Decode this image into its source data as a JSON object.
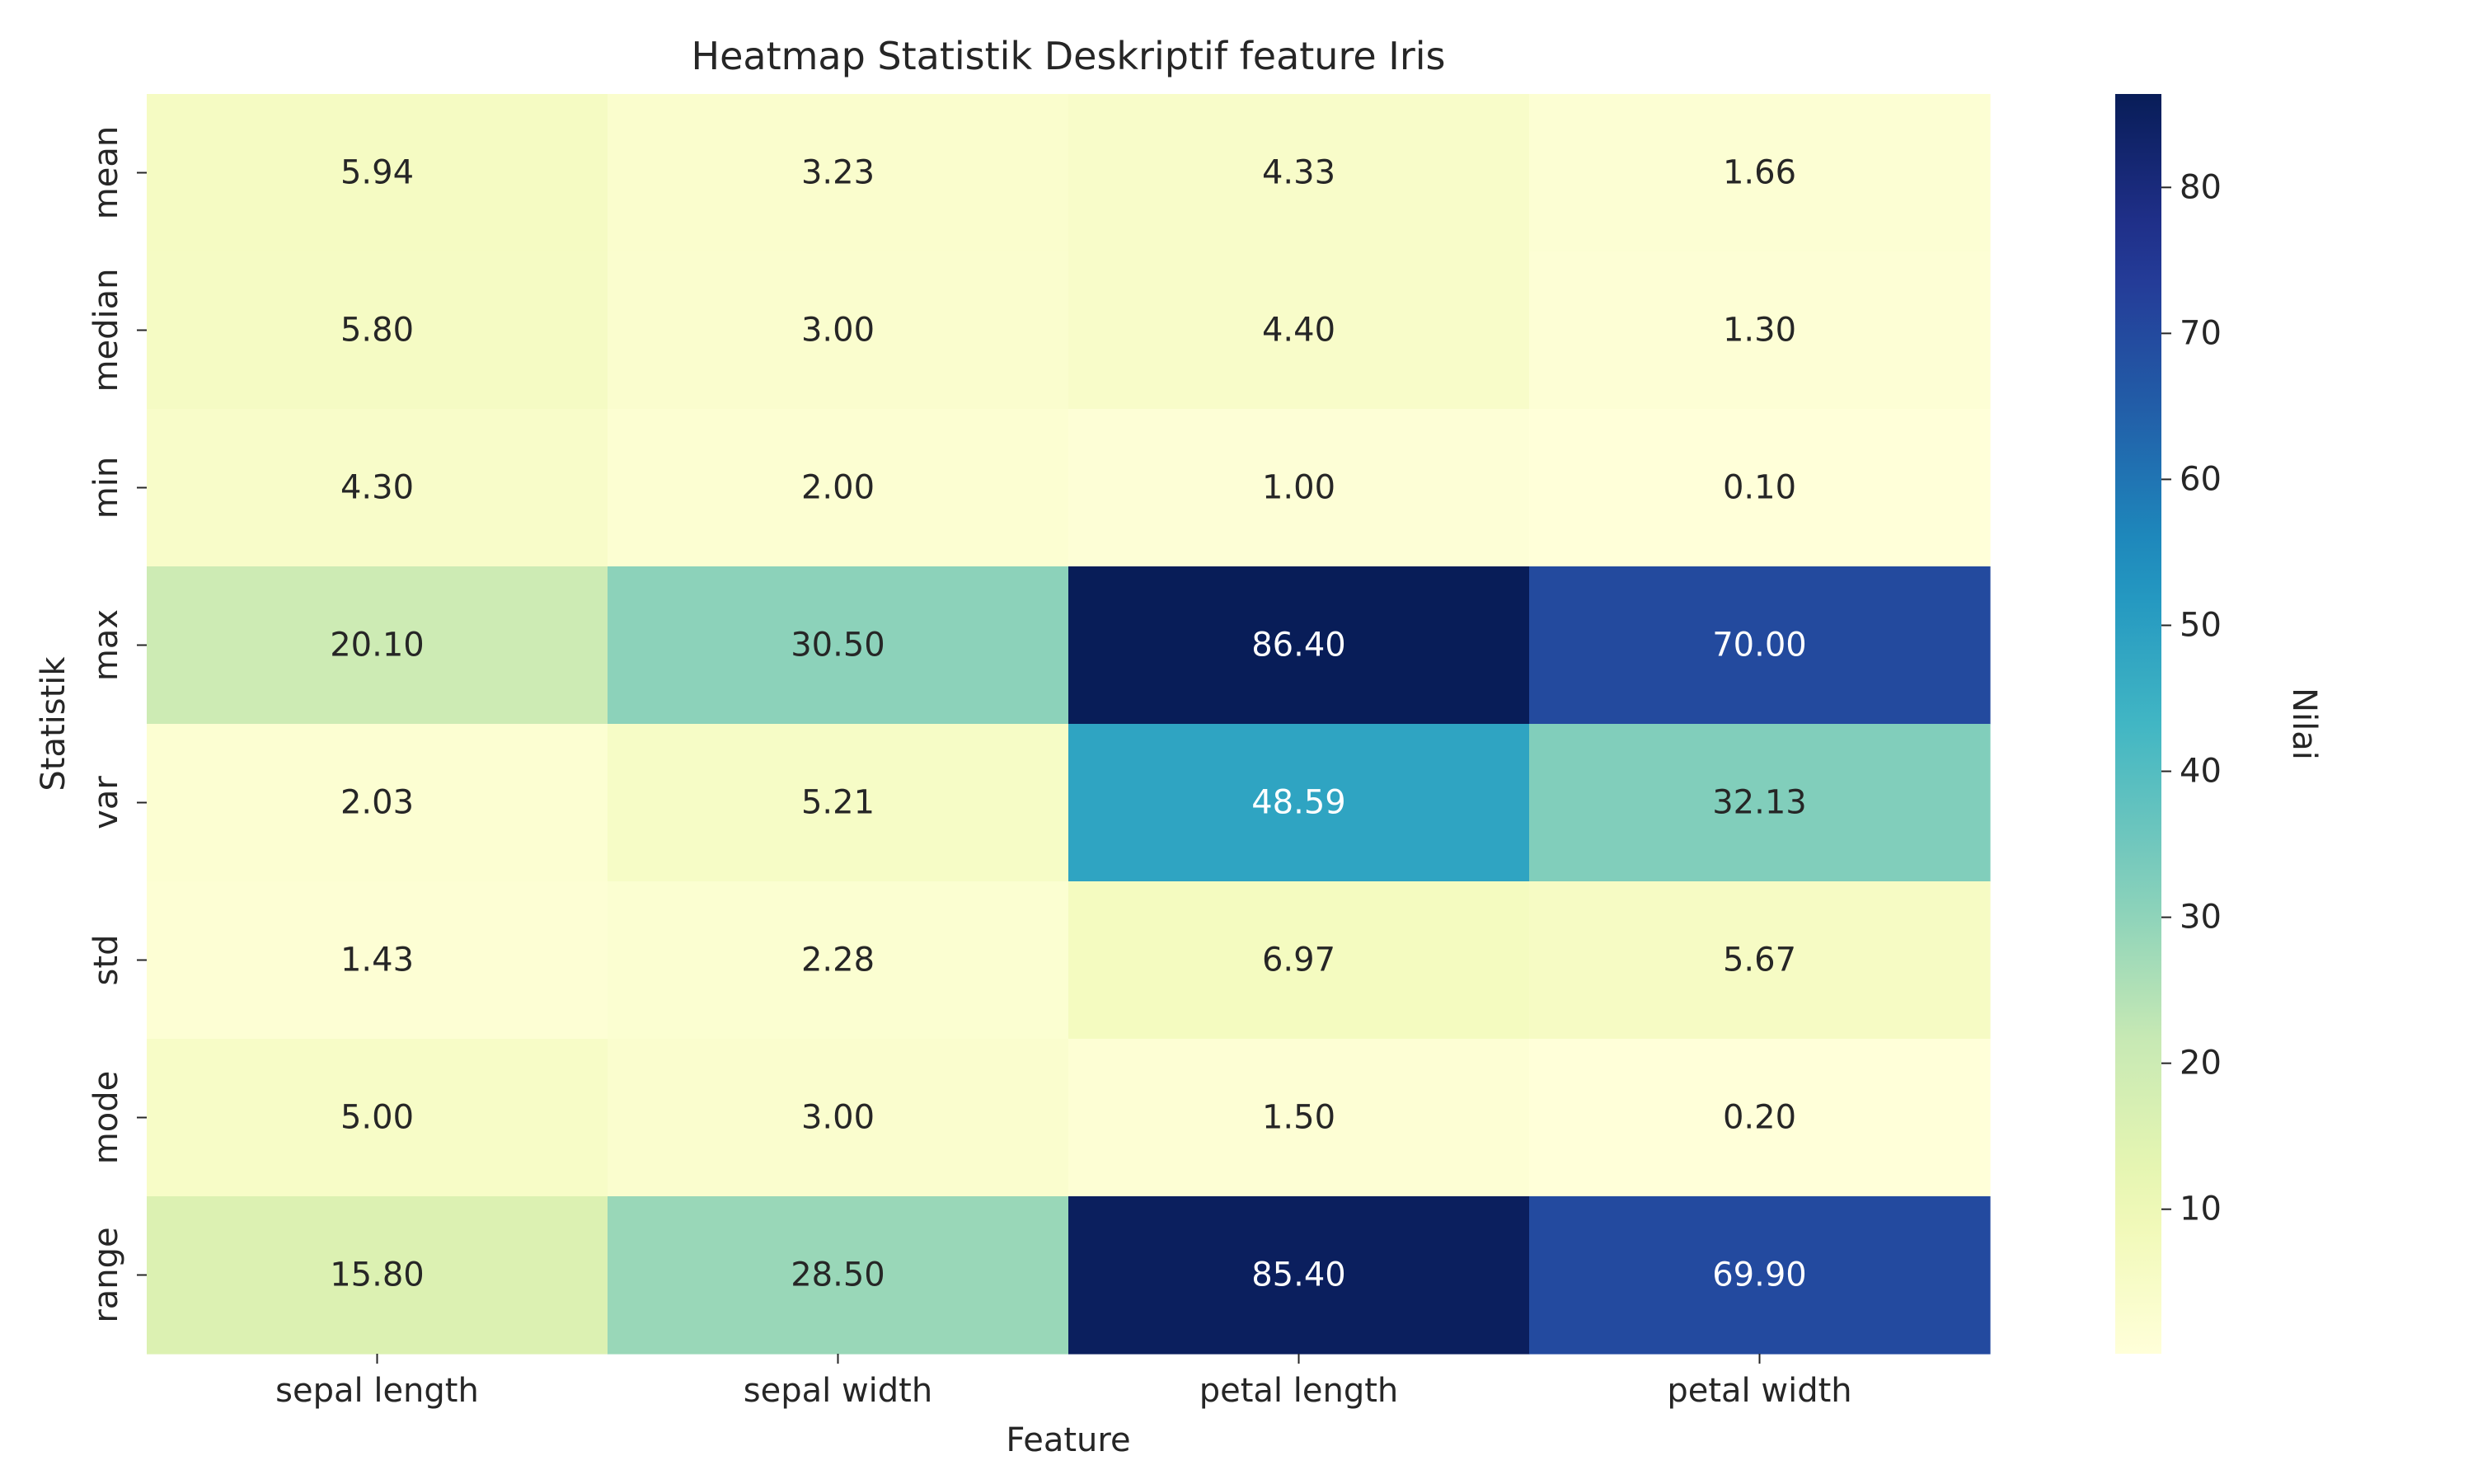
{
  "chart_data": {
    "type": "heatmap",
    "title": "Heatmap Statistik Deskriptif feature Iris",
    "xlabel": "Feature",
    "ylabel": "Statistik",
    "colorbar_label": "Nilai",
    "colormap": "YlGnBu",
    "columns": [
      "sepal length",
      "sepal width",
      "petal length",
      "petal width"
    ],
    "rows": [
      "mean",
      "median",
      "min",
      "max",
      "var",
      "std",
      "mode",
      "range"
    ],
    "values": [
      [
        5.94,
        3.23,
        4.33,
        1.66
      ],
      [
        5.8,
        3.0,
        4.4,
        1.3
      ],
      [
        4.3,
        2.0,
        1.0,
        0.1
      ],
      [
        20.1,
        30.5,
        86.4,
        70.0
      ],
      [
        2.03,
        5.21,
        48.59,
        32.13
      ],
      [
        1.43,
        2.28,
        6.97,
        5.67
      ],
      [
        5.0,
        3.0,
        1.5,
        0.2
      ],
      [
        15.8,
        28.5,
        85.4,
        69.9
      ]
    ],
    "value_format": "2 decimals",
    "color_range": [
      0.1,
      86.4
    ],
    "colorbar_ticks": [
      10,
      20,
      30,
      40,
      50,
      60,
      70,
      80
    ],
    "colorbar_tick_labels": [
      "10",
      "20",
      "30",
      "40",
      "50",
      "60",
      "70",
      "80"
    ]
  }
}
